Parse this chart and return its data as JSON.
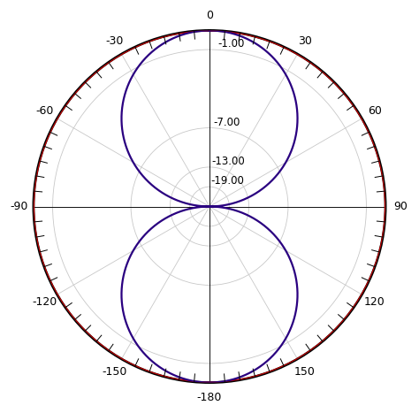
{
  "background_color": "#ffffff",
  "r_labels": [
    "-1.00",
    "-7.00",
    "-13.00",
    "-19.00"
  ],
  "r_ticks_db": [
    -1.0,
    -7.0,
    -13.0,
    -19.0
  ],
  "red_color": "#cc0000",
  "blue_color": "#2a0080",
  "line_width": 1.6,
  "grid_color": "#c8c8c8",
  "outer_ring_color": "#000000",
  "tick_color": "#000000",
  "label_color": "#000000",
  "angle_labels_deg": [
    0,
    30,
    60,
    90,
    120,
    150,
    180,
    210,
    240,
    270,
    300,
    330
  ],
  "angle_labels_text": [
    "0",
    "30",
    "60",
    "90",
    "120",
    "150",
    "-180",
    "-150",
    "-120",
    "-90",
    "-60",
    "-30"
  ],
  "figsize": [
    4.74,
    4.67
  ],
  "dpi": 100
}
